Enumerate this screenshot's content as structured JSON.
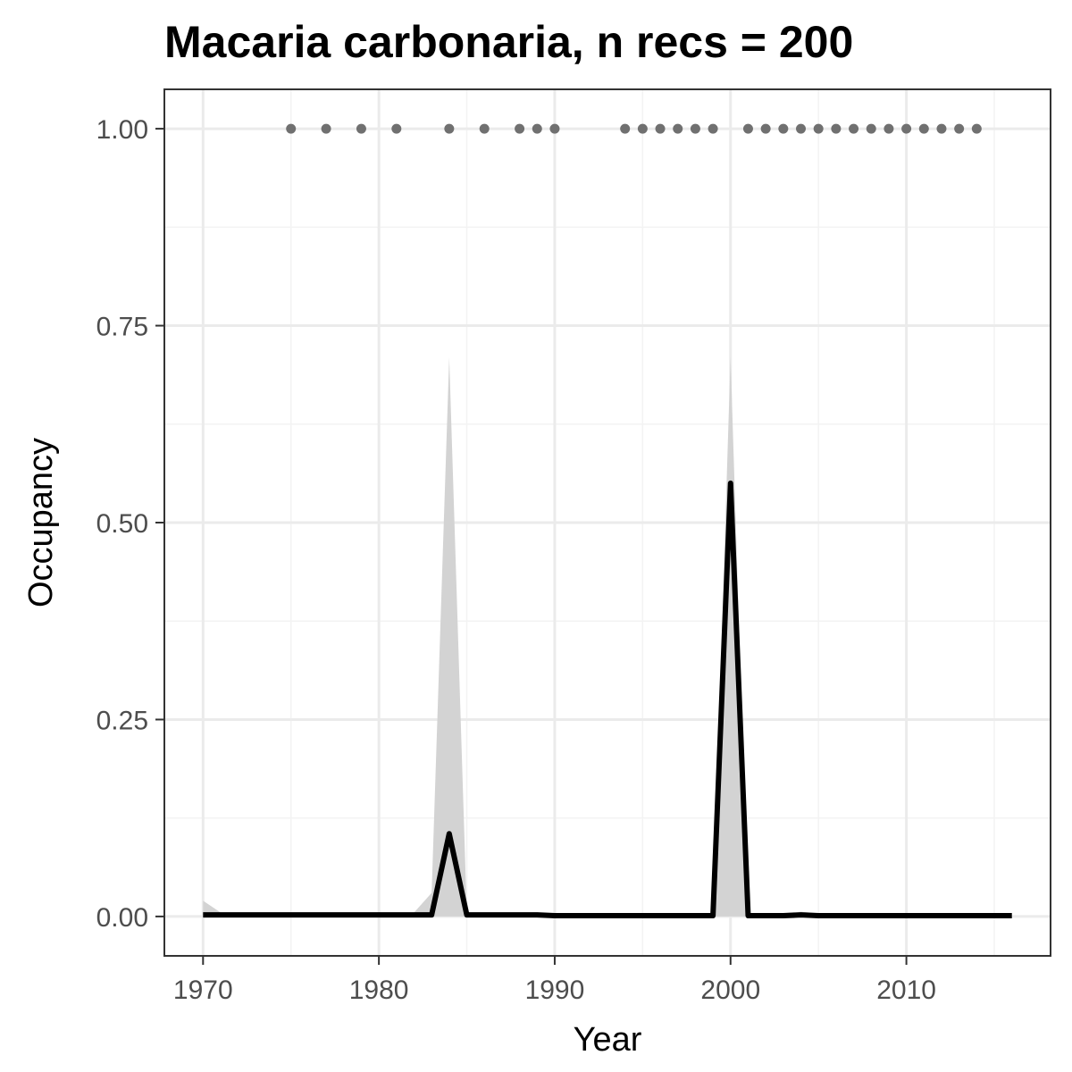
{
  "chart_data": {
    "type": "line",
    "title": "Macaria carbonaria, n recs = 200",
    "xlabel": "Year",
    "ylabel": "Occupancy",
    "xlim": [
      1967.8,
      2018.2
    ],
    "ylim": [
      -0.05,
      1.05
    ],
    "x_ticks": [
      1970,
      1980,
      1990,
      2000,
      2010
    ],
    "x_tick_labels": [
      "1970",
      "1980",
      "1990",
      "2000",
      "2010"
    ],
    "y_ticks": [
      0,
      0.25,
      0.5,
      0.75,
      1.0
    ],
    "y_tick_labels": [
      "0.00",
      "0.25",
      "0.50",
      "0.75",
      "1.00"
    ],
    "grid": true,
    "legend": "none",
    "colors": {
      "line": "#000000",
      "ribbon": "#d3d3d3",
      "points": "#707070",
      "grid_major": "#ebebeb",
      "grid_minor": "#f3f3f3",
      "panel_border": "#333333"
    },
    "series": [
      {
        "kind": "line",
        "x": [
          1970,
          1971,
          1972,
          1973,
          1974,
          1975,
          1976,
          1977,
          1978,
          1979,
          1980,
          1981,
          1982,
          1983,
          1984,
          1985,
          1986,
          1987,
          1988,
          1989,
          1990,
          1991,
          1992,
          1993,
          1994,
          1995,
          1996,
          1997,
          1998,
          1999,
          2000,
          2001,
          2002,
          2003,
          2004,
          2005,
          2006,
          2007,
          2008,
          2009,
          2010,
          2011,
          2012,
          2013,
          2014,
          2015,
          2016
        ],
        "y": [
          0.002,
          0.002,
          0.002,
          0.002,
          0.002,
          0.002,
          0.002,
          0.002,
          0.002,
          0.002,
          0.002,
          0.002,
          0.002,
          0.002,
          0.105,
          0.002,
          0.002,
          0.002,
          0.002,
          0.002,
          0.001,
          0.001,
          0.001,
          0.001,
          0.001,
          0.001,
          0.001,
          0.001,
          0.001,
          0.001,
          0.55,
          0.001,
          0.001,
          0.001,
          0.002,
          0.001,
          0.001,
          0.001,
          0.001,
          0.001,
          0.001,
          0.001,
          0.001,
          0.001,
          0.001,
          0.001,
          0.001
        ]
      },
      {
        "kind": "ribbon",
        "x": [
          1970,
          1971,
          1972,
          1973,
          1974,
          1975,
          1976,
          1977,
          1978,
          1979,
          1980,
          1981,
          1982,
          1983,
          1984,
          1985,
          1986,
          1987,
          1988,
          1989,
          1990,
          1991,
          1992,
          1993,
          1994,
          1995,
          1996,
          1997,
          1998,
          1999,
          2000,
          2001,
          2002,
          2003,
          2004,
          2005,
          2006,
          2007,
          2008,
          2009,
          2010,
          2011,
          2012,
          2013,
          2014,
          2015,
          2016
        ],
        "lower": [
          0,
          0,
          0,
          0,
          0,
          0,
          0,
          0,
          0,
          0,
          0,
          0,
          0,
          0,
          0,
          0,
          0,
          0,
          0,
          0,
          0,
          0,
          0,
          0,
          0,
          0,
          0,
          0,
          0,
          0,
          0,
          0,
          0,
          0,
          0,
          0,
          0,
          0,
          0,
          0,
          0,
          0,
          0,
          0,
          0,
          0,
          0
        ],
        "upper": [
          0.02,
          0.005,
          0.005,
          0.005,
          0.005,
          0.005,
          0.005,
          0.005,
          0.005,
          0.005,
          0.005,
          0.005,
          0.005,
          0.03,
          0.71,
          0.005,
          0.005,
          0.005,
          0.005,
          0.005,
          0.003,
          0.003,
          0.003,
          0.003,
          0.003,
          0.003,
          0.003,
          0.003,
          0.003,
          0.003,
          0.71,
          0.004,
          0.004,
          0.004,
          0.006,
          0.004,
          0.004,
          0.004,
          0.004,
          0.004,
          0.004,
          0.004,
          0.004,
          0.004,
          0.004,
          0.004,
          0.004
        ]
      },
      {
        "kind": "points",
        "x": [
          1975,
          1977,
          1979,
          1981,
          1984,
          1986,
          1988,
          1989,
          1990,
          1994,
          1995,
          1996,
          1997,
          1998,
          1999,
          2001,
          2002,
          2003,
          2004,
          2005,
          2006,
          2007,
          2008,
          2009,
          2010,
          2011,
          2012,
          2013,
          2014
        ],
        "y": [
          1,
          1,
          1,
          1,
          1,
          1,
          1,
          1,
          1,
          1,
          1,
          1,
          1,
          1,
          1,
          1,
          1,
          1,
          1,
          1,
          1,
          1,
          1,
          1,
          1,
          1,
          1,
          1,
          1
        ]
      }
    ]
  }
}
